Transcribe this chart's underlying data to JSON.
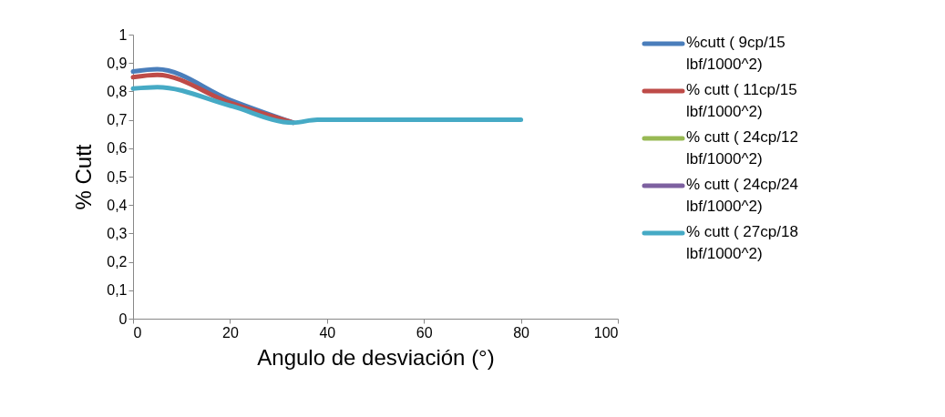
{
  "chart_data": {
    "type": "line",
    "xlabel": "Angulo de desviación (°)",
    "ylabel": "% Cutt",
    "x": [
      0,
      5,
      20,
      33,
      38,
      60,
      80
    ],
    "series": [
      {
        "name": "%cutt ( 9cp/15 lbf/1000^2)",
        "color": "#4a7ebb",
        "values": [
          0.87,
          0.878,
          0.77,
          0.69,
          null,
          null,
          null
        ]
      },
      {
        "name": "% cutt ( 11cp/15 lbf/1000^2)",
        "color": "#be4b48",
        "values": [
          0.85,
          0.858,
          0.76,
          0.69,
          null,
          null,
          null
        ]
      },
      {
        "name": "% cutt ( 24cp/12 lbf/1000^2)",
        "color": "#98b954",
        "values": [
          null,
          null,
          null,
          null,
          null,
          null,
          null
        ]
      },
      {
        "name": "% cutt ( 24cp/24 lbf/1000^2)",
        "color": "#7d60a0",
        "values": [
          null,
          null,
          null,
          null,
          null,
          null,
          null
        ]
      },
      {
        "name": "% cutt ( 27cp/18 lbf/1000^2)",
        "color": "#46aac5",
        "values": [
          0.81,
          0.815,
          0.75,
          0.69,
          0.7,
          0.7,
          0.7
        ]
      }
    ],
    "xlim": [
      0,
      100
    ],
    "xticks": [
      0,
      20,
      40,
      60,
      80,
      100
    ],
    "ylim": [
      0,
      1
    ],
    "yticks": [
      0,
      {
        "value": 0.1,
        "label": "0,1"
      },
      {
        "value": 0.2,
        "label": "0,2"
      },
      {
        "value": 0.3,
        "label": "0,3"
      },
      {
        "value": 0.4,
        "label": "0,4"
      },
      {
        "value": 0.5,
        "label": "0,5"
      },
      {
        "value": 0.6,
        "label": "0,6"
      },
      {
        "value": 0.7,
        "label": "0,7"
      },
      {
        "value": 0.8,
        "label": "0,8"
      },
      {
        "value": 0.9,
        "label": "0,9"
      },
      1
    ],
    "grid": false,
    "legend": "right",
    "marker": "none",
    "line_style": "solid"
  }
}
